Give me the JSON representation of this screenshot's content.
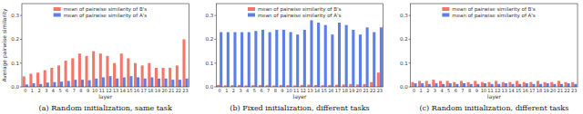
{
  "chart_data": [
    {
      "type": "bar",
      "title": "(a) Random initialization, same task",
      "x_label": "layer",
      "y_label": "Average pairwise similarity",
      "categories": [
        "0",
        "1",
        "2",
        "3",
        "4",
        "5",
        "6",
        "7",
        "8",
        "9",
        "10",
        "11",
        "12",
        "13",
        "14",
        "15",
        "16",
        "17",
        "18",
        "19",
        "20",
        "21",
        "22",
        "23"
      ],
      "series": [
        {
          "name": "mean of pairwise similarity of B's",
          "color": "#f4766b",
          "values": [
            0.044,
            0.055,
            0.06,
            0.07,
            0.08,
            0.09,
            0.11,
            0.12,
            0.14,
            0.13,
            0.15,
            0.14,
            0.13,
            0.1,
            0.14,
            0.12,
            0.1,
            0.09,
            0.1,
            0.08,
            0.08,
            0.08,
            0.09,
            0.2
          ]
        },
        {
          "name": "mean of pairwise similarity of A's",
          "color": "#5b7ee8",
          "values": [
            0.01,
            0.015,
            0.012,
            0.018,
            0.02,
            0.022,
            0.025,
            0.03,
            0.03,
            0.028,
            0.035,
            0.04,
            0.045,
            0.035,
            0.04,
            0.045,
            0.04,
            0.035,
            0.04,
            0.035,
            0.035,
            0.03,
            0.03,
            0.035
          ]
        }
      ],
      "ylim": [
        0,
        0.35
      ],
      "yticks": [
        {
          "value": 0,
          "label": "0.0"
        },
        {
          "value": 0.1,
          "label": "0.1"
        },
        {
          "value": 0.2,
          "label": "0.2"
        },
        {
          "value": 0.3,
          "label": "0.3"
        }
      ],
      "legend": "upper center",
      "grid": false
    },
    {
      "type": "bar",
      "title": "(b) Fixed initialization, different tasks",
      "x_label": "layer",
      "categories": [
        "0",
        "1",
        "2",
        "3",
        "4",
        "5",
        "6",
        "7",
        "8",
        "9",
        "10",
        "11",
        "12",
        "13",
        "14",
        "15",
        "16",
        "17",
        "18",
        "19",
        "20",
        "21",
        "22",
        "23"
      ],
      "series": [
        {
          "name": "mean of pairwise similarity of B's",
          "color": "#f4766b",
          "values": [
            0.008,
            0.006,
            0.007,
            0.008,
            0.006,
            0.007,
            0.008,
            0.007,
            0.006,
            0.008,
            0.007,
            0.006,
            0.008,
            0.009,
            0.008,
            0.007,
            0.008,
            0.009,
            0.01,
            0.012,
            0.01,
            0.012,
            0.02,
            0.06
          ]
        },
        {
          "name": "mean of pairwise similarity of A's",
          "color": "#5b7ee8",
          "values": [
            0.23,
            0.23,
            0.23,
            0.23,
            0.23,
            0.235,
            0.24,
            0.23,
            0.24,
            0.24,
            0.23,
            0.22,
            0.24,
            0.28,
            0.27,
            0.26,
            0.22,
            0.27,
            0.26,
            0.24,
            0.22,
            0.25,
            0.23,
            0.25
          ]
        }
      ],
      "ylim": [
        0,
        0.35
      ],
      "yticks": [
        {
          "value": 0,
          "label": "0.0"
        },
        {
          "value": 0.1,
          "label": "0.1"
        },
        {
          "value": 0.2,
          "label": "0.2"
        },
        {
          "value": 0.3,
          "label": "0.3"
        }
      ],
      "legend": "upper center",
      "grid": false
    },
    {
      "type": "bar",
      "title": "(c) Random initialization, different tasks",
      "x_label": "layer",
      "categories": [
        "0",
        "1",
        "2",
        "3",
        "4",
        "5",
        "6",
        "7",
        "8",
        "9",
        "10",
        "11",
        "12",
        "13",
        "14",
        "15",
        "16",
        "17",
        "18",
        "19",
        "20",
        "21",
        "22",
        "23"
      ],
      "series": [
        {
          "name": "mean of pairwise similarity of B's",
          "color": "#f4766b",
          "values": [
            0.02,
            0.025,
            0.025,
            0.03,
            0.025,
            0.025,
            0.02,
            0.025,
            0.02,
            0.025,
            0.02,
            0.02,
            0.025,
            0.02,
            0.02,
            0.025,
            0.02,
            0.02,
            0.025,
            0.02,
            0.02,
            0.025,
            0.02,
            0.02
          ]
        },
        {
          "name": "mean of pairwise similarity of A's",
          "color": "#5b7ee8",
          "values": [
            0.015,
            0.015,
            0.012,
            0.015,
            0.012,
            0.015,
            0.012,
            0.015,
            0.012,
            0.012,
            0.015,
            0.012,
            0.012,
            0.015,
            0.012,
            0.012,
            0.015,
            0.012,
            0.012,
            0.015,
            0.012,
            0.012,
            0.015,
            0.012
          ]
        }
      ],
      "ylim": [
        0,
        0.35
      ],
      "yticks": [
        {
          "value": 0,
          "label": "0.0"
        },
        {
          "value": 0.1,
          "label": "0.1"
        },
        {
          "value": 0.2,
          "label": "0.2"
        },
        {
          "value": 0.3,
          "label": "0.3"
        }
      ],
      "legend": "upper center",
      "grid": false
    }
  ]
}
